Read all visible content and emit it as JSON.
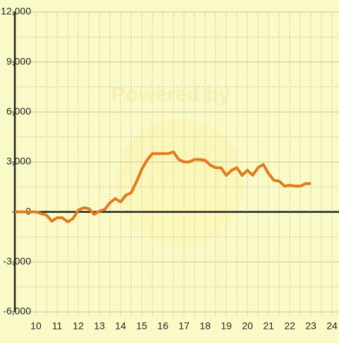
{
  "chart_data": {
    "type": "line",
    "watermark": "Powered by",
    "x": [
      9,
      10,
      10.25,
      10.5,
      10.75,
      11,
      11.25,
      11.5,
      11.75,
      12,
      12.25,
      12.5,
      12.75,
      13,
      13.25,
      13.5,
      13.75,
      14,
      14.25,
      14.5,
      14.75,
      15,
      15.25,
      15.5,
      15.75,
      16,
      16.25,
      16.5,
      16.75,
      17,
      17.25,
      17.5,
      17.75,
      18,
      18.25,
      18.5,
      18.75,
      19,
      19.25,
      19.5,
      19.75,
      20,
      20.25,
      20.5,
      20.75,
      21,
      21.25,
      21.5,
      21.75,
      22,
      22.25,
      22.5,
      22.75,
      23
    ],
    "series": [
      {
        "color": "#e07b20",
        "values": [
          0,
          0,
          -100,
          -200,
          -550,
          -350,
          -350,
          -600,
          -400,
          100,
          250,
          200,
          -150,
          50,
          150,
          550,
          800,
          600,
          1000,
          1150,
          1800,
          2550,
          3100,
          3500,
          3500,
          3500,
          3500,
          3600,
          3150,
          3000,
          3000,
          3150,
          3150,
          3100,
          2800,
          2650,
          2650,
          2200,
          2500,
          2650,
          2200,
          2500,
          2200,
          2650,
          2850,
          2300,
          1900,
          1850,
          1550,
          1600,
          1550,
          1550,
          1700,
          1700
        ]
      }
    ],
    "xlim": [
      9,
      24.33
    ],
    "xticks": [
      10,
      11,
      12,
      13,
      14,
      15,
      16,
      17,
      18,
      19,
      20,
      21,
      22,
      23,
      24
    ],
    "ylim": [
      -6000,
      12000
    ],
    "yticks": [
      {
        "value": -6000,
        "label": "-6,000"
      },
      {
        "value": -3000,
        "label": "-3,000"
      },
      0,
      {
        "value": 3000,
        "label": "3,000"
      },
      {
        "value": 6000,
        "label": "6,000"
      },
      {
        "value": 9000,
        "label": "9,000"
      },
      {
        "value": 12000,
        "label": "12,000"
      }
    ],
    "grid": true
  }
}
